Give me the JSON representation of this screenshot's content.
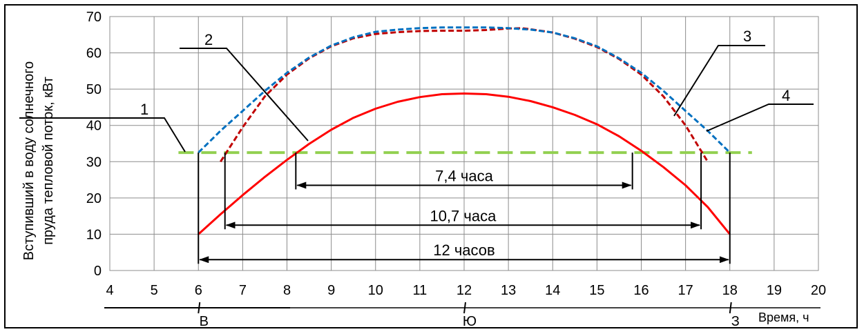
{
  "chart_data": {
    "type": "line",
    "ylabel_line1": "Вступивший в воду солнечного",
    "ylabel_line2": "пруда тепловой поток, кВт",
    "xlabel": "Время, ч",
    "xlim": [
      4,
      20
    ],
    "ylim": [
      0,
      70
    ],
    "x_ticks": [
      4,
      5,
      6,
      7,
      8,
      9,
      10,
      11,
      12,
      13,
      14,
      15,
      16,
      17,
      18,
      19,
      20
    ],
    "y_ticks": [
      0,
      10,
      20,
      30,
      40,
      50,
      60,
      70
    ],
    "grid": true,
    "direction_labels": [
      {
        "text": "В",
        "x": 6
      },
      {
        "text": "Ю",
        "x": 12
      },
      {
        "text": "З",
        "x": 18
      }
    ],
    "series": [
      {
        "id": "1",
        "color": "#92d050",
        "style": "dashed",
        "points": [
          [
            5.55,
            32.5
          ],
          [
            18.5,
            32.5
          ]
        ]
      },
      {
        "id": "2",
        "color": "#ff0000",
        "style": "solid",
        "points": [
          [
            6,
            10
          ],
          [
            6.5,
            15.5
          ],
          [
            7,
            20.8
          ],
          [
            7.5,
            25.8
          ],
          [
            8,
            30.5
          ],
          [
            8.5,
            34.9
          ],
          [
            9,
            38.8
          ],
          [
            9.5,
            42.1
          ],
          [
            10,
            44.6
          ],
          [
            10.5,
            46.5
          ],
          [
            11,
            47.8
          ],
          [
            11.5,
            48.6
          ],
          [
            12,
            48.8
          ],
          [
            12.5,
            48.6
          ],
          [
            13,
            47.9
          ],
          [
            13.5,
            46.7
          ],
          [
            14,
            45
          ],
          [
            14.5,
            42.9
          ],
          [
            15,
            40.3
          ],
          [
            15.5,
            37
          ],
          [
            16,
            33
          ],
          [
            16.5,
            28.5
          ],
          [
            17,
            23.5
          ],
          [
            17.5,
            17.5
          ],
          [
            18,
            10
          ]
        ]
      },
      {
        "id": "3",
        "color": "#c00000",
        "style": "dashed",
        "points": [
          [
            6.5,
            30
          ],
          [
            7,
            39.5
          ],
          [
            7.5,
            48
          ],
          [
            8,
            54
          ],
          [
            8.5,
            58.5
          ],
          [
            9,
            61.8
          ],
          [
            9.5,
            64
          ],
          [
            10,
            65.2
          ],
          [
            10.5,
            65.7
          ],
          [
            11,
            66
          ],
          [
            11.5,
            66.1
          ],
          [
            12,
            66.1
          ],
          [
            12.5,
            66.3
          ],
          [
            13,
            66.7
          ],
          [
            13.3,
            66.8
          ],
          [
            13.5,
            66.5
          ],
          [
            14,
            65.6
          ],
          [
            14.5,
            63.9
          ],
          [
            15,
            61.6
          ],
          [
            15.5,
            58.3
          ],
          [
            16,
            54
          ],
          [
            16.5,
            48
          ],
          [
            17,
            40
          ],
          [
            17.5,
            30
          ]
        ]
      },
      {
        "id": "4",
        "color": "#0070c0",
        "style": "dashed",
        "points": [
          [
            6,
            32.5
          ],
          [
            6.5,
            38.5
          ],
          [
            7,
            44
          ],
          [
            7.5,
            49.5
          ],
          [
            8,
            54.5
          ],
          [
            8.5,
            58.7
          ],
          [
            9,
            62
          ],
          [
            9.5,
            64.3
          ],
          [
            10,
            65.8
          ],
          [
            10.5,
            66.4
          ],
          [
            11,
            66.8
          ],
          [
            11.5,
            67
          ],
          [
            12,
            67
          ],
          [
            12.5,
            67
          ],
          [
            13,
            66.8
          ],
          [
            13.5,
            66.4
          ],
          [
            14,
            65.6
          ],
          [
            14.5,
            64
          ],
          [
            15,
            61.8
          ],
          [
            15.5,
            58.5
          ],
          [
            16,
            54.5
          ],
          [
            16.5,
            49.5
          ],
          [
            17,
            44
          ],
          [
            17.5,
            38.5
          ],
          [
            18,
            32.5
          ]
        ]
      }
    ],
    "intervals": [
      {
        "label": "7,4 часа",
        "x1": 8.2,
        "x2": 15.8,
        "y": 23.5
      },
      {
        "label": "10,7 часа",
        "x1": 6.6,
        "x2": 17.35,
        "y": 12.5
      },
      {
        "label": "12 часов",
        "x1": 6,
        "x2": 18,
        "y": 3
      }
    ],
    "callouts": [
      {
        "label": "1",
        "series": "1"
      },
      {
        "label": "2",
        "series": "2"
      },
      {
        "label": "3",
        "series": "3"
      },
      {
        "label": "4",
        "series": "4"
      }
    ]
  }
}
